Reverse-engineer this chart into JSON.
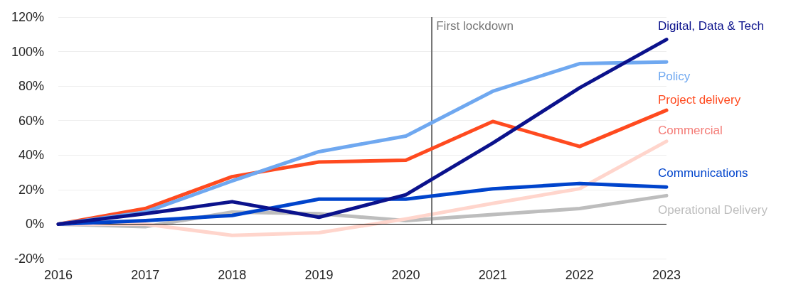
{
  "chart_data": {
    "type": "line",
    "x": [
      2016,
      2017,
      2018,
      2019,
      2020,
      2021,
      2022,
      2023
    ],
    "xlim": [
      2016,
      2023
    ],
    "xticks": [
      2016,
      2017,
      2018,
      2019,
      2020,
      2021,
      2022,
      2023
    ],
    "ylim": [
      -20,
      120
    ],
    "yticks": [
      {
        "value": -20,
        "label": "-20%"
      },
      {
        "value": 0,
        "label": "0%"
      },
      {
        "value": 20,
        "label": "20%"
      },
      {
        "value": 40,
        "label": "40%"
      },
      {
        "value": 60,
        "label": "60%"
      },
      {
        "value": 80,
        "label": "80%"
      },
      {
        "value": 100,
        "label": "100%"
      },
      {
        "value": 120,
        "label": "120%"
      }
    ],
    "grid": "y",
    "marker": "none",
    "line_style": "solid",
    "ref_lines": [
      {
        "axis": "x",
        "value": 2020.3,
        "label": "First lockdown",
        "color": "#777777"
      },
      {
        "axis": "y",
        "value": 0,
        "color": "#000000"
      }
    ],
    "series": [
      {
        "name": "Operational Delivery",
        "color": "#bdbdbd",
        "values": [
          0,
          -1.5,
          7,
          6,
          2,
          5.5,
          9,
          16.5
        ]
      },
      {
        "name": "Commercial",
        "color": "#ffd5cc",
        "values": [
          0,
          0,
          -6.5,
          -5,
          3,
          12,
          20.5,
          48
        ]
      },
      {
        "name": "Communications",
        "color": "#0044cc",
        "values": [
          0,
          2,
          5,
          14.5,
          14.5,
          20.5,
          23.5,
          21.5
        ]
      },
      {
        "name": "Project delivery",
        "color": "#ff4a1f",
        "values": [
          0,
          9,
          27.5,
          36,
          37,
          59.5,
          45,
          66
        ]
      },
      {
        "name": "Policy",
        "color": "#6fa8f0",
        "values": [
          0,
          7,
          25,
          42,
          51,
          77,
          93,
          94
        ]
      },
      {
        "name": "Digital, Data & Tech",
        "color": "#0b128c",
        "values": [
          0,
          6,
          13,
          4,
          17,
          47,
          79,
          107
        ]
      }
    ]
  }
}
